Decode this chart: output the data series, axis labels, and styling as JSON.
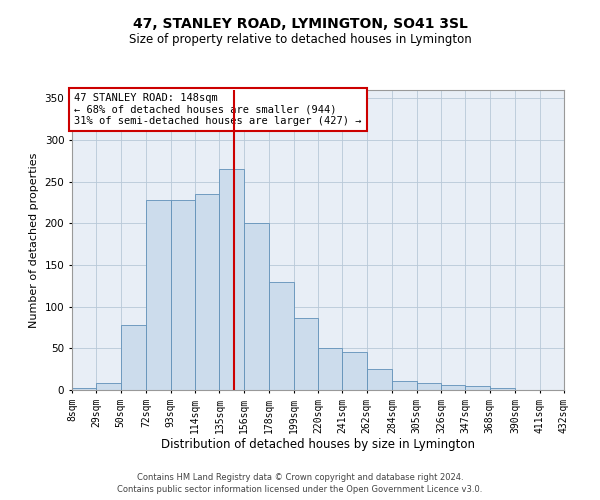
{
  "title": "47, STANLEY ROAD, LYMINGTON, SO41 3SL",
  "subtitle": "Size of property relative to detached houses in Lymington",
  "xlabel": "Distribution of detached houses by size in Lymington",
  "ylabel": "Number of detached properties",
  "bar_color": "#ccdcec",
  "bar_edge_color": "#6090b8",
  "background_color": "#ffffff",
  "plot_bg_color": "#e8eef6",
  "grid_color": "#b8c8d8",
  "vline_x": 148,
  "vline_color": "#cc0000",
  "annotation_text": "47 STANLEY ROAD: 148sqm\n← 68% of detached houses are smaller (944)\n31% of semi-detached houses are larger (427) →",
  "annotation_box_color": "#ffffff",
  "annotation_box_edge": "#cc0000",
  "bins": [
    8,
    29,
    50,
    72,
    93,
    114,
    135,
    156,
    178,
    199,
    220,
    241,
    262,
    284,
    305,
    326,
    347,
    368,
    390,
    411,
    432
  ],
  "bar_heights": [
    2,
    8,
    78,
    228,
    228,
    235,
    265,
    200,
    130,
    87,
    50,
    46,
    25,
    11,
    8,
    6,
    5,
    3,
    0,
    0,
    0
  ],
  "tick_labels": [
    "8sqm",
    "29sqm",
    "50sqm",
    "72sqm",
    "93sqm",
    "114sqm",
    "135sqm",
    "156sqm",
    "178sqm",
    "199sqm",
    "220sqm",
    "241sqm",
    "262sqm",
    "284sqm",
    "305sqm",
    "326sqm",
    "347sqm",
    "368sqm",
    "390sqm",
    "411sqm",
    "432sqm"
  ],
  "footer1": "Contains HM Land Registry data © Crown copyright and database right 2024.",
  "footer2": "Contains public sector information licensed under the Open Government Licence v3.0.",
  "ylim": [
    0,
    360
  ],
  "yticks": [
    0,
    50,
    100,
    150,
    200,
    250,
    300,
    350
  ],
  "title_fontsize": 10,
  "subtitle_fontsize": 8.5,
  "ylabel_fontsize": 8,
  "xlabel_fontsize": 8.5,
  "tick_fontsize": 7,
  "footer_fontsize": 6,
  "annot_fontsize": 7.5
}
